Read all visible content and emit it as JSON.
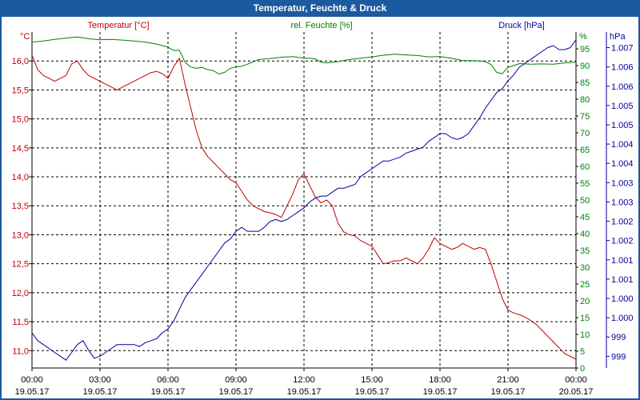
{
  "window": {
    "title": "Temperatur, Feuchte & Druck"
  },
  "colors": {
    "temperature": "#c00000",
    "humidity": "#008000",
    "pressure": "#00009a",
    "axis_text": "#000000",
    "title_bar": "#1b5a9e"
  },
  "chart_data": {
    "type": "line",
    "title": "Temperatur, Feuchte & Druck",
    "x_labels": [
      {
        "time": "00:00",
        "date": "19.05.17"
      },
      {
        "time": "03:00",
        "date": "19.05.17"
      },
      {
        "time": "06:00",
        "date": "19.05.17"
      },
      {
        "time": "09:00",
        "date": "19.05.17"
      },
      {
        "time": "12:00",
        "date": "19.05.17"
      },
      {
        "time": "15:00",
        "date": "19.05.17"
      },
      {
        "time": "18:00",
        "date": "19.05.17"
      },
      {
        "time": "21:00",
        "date": "19.05.17"
      },
      {
        "time": "00:00",
        "date": "20.05.17"
      }
    ],
    "x_range_hours": [
      0,
      24
    ],
    "axes": {
      "temperature": {
        "label": "Temperatur [°C]",
        "unit": "°C",
        "range": [
          10.7,
          16.5
        ],
        "ticks": [
          "11,0",
          "11,5",
          "12,0",
          "12,5",
          "13,0",
          "13,5",
          "14,0",
          "14,5",
          "15,0",
          "15,5",
          "16,0"
        ]
      },
      "humidity": {
        "label": "rel. Feuchte [%]",
        "unit": "%",
        "range": [
          0,
          100
        ],
        "ticks": [
          "0",
          "5",
          "10",
          "15",
          "20",
          "25",
          "30",
          "35",
          "40",
          "45",
          "50",
          "55",
          "60",
          "65",
          "70",
          "75",
          "80",
          "85",
          "90",
          "95"
        ]
      },
      "pressure": {
        "label": "Druck [hPa]",
        "unit": "hPa",
        "range": [
          998.7,
          1007.3
        ],
        "ticks": [
          "999",
          "999",
          "1.000",
          "1.000",
          "1.001",
          "1.001",
          "1.002",
          "1.002",
          "1.003",
          "1.003",
          "1.004",
          "1.004",
          "1.005",
          "1.005",
          "1.006",
          "1.006",
          "1.007"
        ]
      }
    },
    "series": [
      {
        "name": "Temperatur [°C]",
        "axis": "temperature",
        "x": [
          0,
          0.25,
          0.5,
          0.75,
          1,
          1.25,
          1.5,
          1.75,
          2,
          2.25,
          2.5,
          2.75,
          3,
          3.25,
          3.5,
          3.75,
          4,
          4.25,
          4.5,
          4.75,
          5,
          5.25,
          5.5,
          5.75,
          6,
          6.25,
          6.5,
          6.75,
          7,
          7.25,
          7.5,
          7.75,
          8,
          8.25,
          8.5,
          8.75,
          9,
          9.25,
          9.5,
          9.75,
          10,
          10.25,
          10.5,
          10.75,
          11,
          11.25,
          11.5,
          11.75,
          12,
          12.25,
          12.5,
          12.75,
          13,
          13.25,
          13.5,
          13.75,
          14,
          14.25,
          14.5,
          14.75,
          15,
          15.25,
          15.5,
          15.75,
          16,
          16.25,
          16.5,
          16.75,
          17,
          17.25,
          17.5,
          17.75,
          18,
          18.25,
          18.5,
          18.75,
          19,
          19.25,
          19.5,
          19.75,
          20,
          20.25,
          20.5,
          20.75,
          21,
          21.25,
          21.5,
          21.75,
          22,
          22.25,
          22.5,
          22.75,
          23,
          23.25,
          23.5,
          23.75,
          24
        ],
        "values": [
          16.1,
          15.85,
          15.75,
          15.7,
          15.65,
          15.7,
          15.75,
          15.95,
          16.0,
          15.85,
          15.75,
          15.7,
          15.65,
          15.6,
          15.55,
          15.5,
          15.55,
          15.6,
          15.65,
          15.7,
          15.75,
          15.8,
          15.82,
          15.78,
          15.7,
          15.9,
          16.05,
          15.6,
          15.2,
          14.8,
          14.5,
          14.35,
          14.25,
          14.15,
          14.05,
          13.95,
          13.9,
          13.75,
          13.6,
          13.5,
          13.45,
          13.4,
          13.38,
          13.35,
          13.3,
          13.5,
          13.7,
          13.95,
          14.05,
          13.85,
          13.65,
          13.55,
          13.6,
          13.5,
          13.2,
          13.05,
          13.0,
          12.98,
          12.9,
          12.85,
          12.8,
          12.65,
          12.5,
          12.52,
          12.55,
          12.55,
          12.6,
          12.55,
          12.5,
          12.6,
          12.75,
          12.95,
          12.85,
          12.8,
          12.75,
          12.78,
          12.85,
          12.8,
          12.75,
          12.78,
          12.75,
          12.5,
          12.2,
          11.9,
          11.7,
          11.65,
          11.62,
          11.58,
          11.52,
          11.45,
          11.35,
          11.25,
          11.15,
          11.05,
          10.95,
          10.9,
          10.85
        ],
        "color": "#c00000"
      },
      {
        "name": "rel. Feuchte [%]",
        "axis": "humidity",
        "x": [
          0,
          0.5,
          1,
          1.5,
          2,
          2.5,
          3,
          3.5,
          4,
          4.5,
          5,
          5.5,
          6,
          6.25,
          6.5,
          6.75,
          7,
          7.25,
          7.5,
          7.75,
          8,
          8.25,
          8.5,
          8.75,
          9,
          9.25,
          9.5,
          9.75,
          10,
          10.5,
          11,
          11.5,
          12,
          12.25,
          12.5,
          12.75,
          13,
          13.5,
          14,
          14.5,
          15,
          15.5,
          16,
          16.5,
          17,
          17.5,
          18,
          18.5,
          19,
          19.5,
          20,
          20.25,
          20.5,
          20.75,
          21,
          21.25,
          21.5,
          22,
          22.5,
          23,
          23.5,
          24
        ],
        "values": [
          97,
          97.3,
          97.8,
          98.2,
          98.5,
          98,
          97.7,
          97.8,
          97.6,
          97.3,
          97,
          96.4,
          95.5,
          94.5,
          94.6,
          91,
          89.6,
          89.2,
          89.5,
          88.8,
          88.5,
          87.5,
          88,
          89.2,
          89.6,
          89.8,
          90.4,
          91.1,
          91.8,
          92.1,
          92.5,
          92.7,
          92.2,
          92.2,
          92.0,
          91.0,
          90.8,
          91.2,
          91.8,
          92.2,
          92.6,
          93.1,
          93.4,
          93.2,
          93.0,
          92.6,
          92.7,
          92.2,
          91.5,
          91.5,
          91.2,
          90.3,
          88,
          87.6,
          89.5,
          90.0,
          90.6,
          90.4,
          90.5,
          90.4,
          90.8,
          91.0
        ],
        "color": "#008000"
      },
      {
        "name": "Druck [hPa]",
        "axis": "pressure",
        "x": [
          0,
          0.25,
          0.5,
          0.75,
          1,
          1.25,
          1.5,
          1.75,
          2,
          2.25,
          2.5,
          2.75,
          3,
          3.25,
          3.5,
          3.75,
          4,
          4.25,
          4.5,
          4.75,
          5,
          5.25,
          5.5,
          5.75,
          6,
          6.25,
          6.5,
          6.75,
          7,
          7.25,
          7.5,
          7.75,
          8,
          8.25,
          8.5,
          8.75,
          9,
          9.25,
          9.5,
          9.75,
          10,
          10.25,
          10.5,
          10.75,
          11,
          11.25,
          11.5,
          11.75,
          12,
          12.25,
          12.5,
          12.75,
          13,
          13.25,
          13.5,
          13.75,
          14,
          14.25,
          14.5,
          14.75,
          15,
          15.25,
          15.5,
          15.75,
          16,
          16.25,
          16.5,
          16.75,
          17,
          17.25,
          17.5,
          17.75,
          18,
          18.25,
          18.5,
          18.75,
          19,
          19.25,
          19.5,
          19.75,
          20,
          20.25,
          20.5,
          20.75,
          21,
          21.25,
          21.5,
          21.75,
          22,
          22.25,
          22.5,
          22.75,
          23,
          23.25,
          23.5,
          23.75,
          24
        ],
        "values": [
          999.6,
          999.4,
          999.3,
          999.2,
          999.1,
          999.0,
          998.9,
          999.1,
          999.3,
          999.4,
          999.15,
          998.95,
          999.0,
          999.1,
          999.2,
          999.3,
          999.3,
          999.3,
          999.3,
          999.25,
          999.35,
          999.4,
          999.45,
          999.6,
          999.7,
          999.9,
          1000.2,
          1000.5,
          1000.7,
          1000.9,
          1001.1,
          1001.3,
          1001.5,
          1001.7,
          1001.9,
          1002.0,
          1002.2,
          1002.3,
          1002.2,
          1002.2,
          1002.2,
          1002.3,
          1002.45,
          1002.5,
          1002.45,
          1002.5,
          1002.6,
          1002.7,
          1002.8,
          1002.95,
          1003.05,
          1003.1,
          1003.1,
          1003.2,
          1003.3,
          1003.3,
          1003.35,
          1003.4,
          1003.6,
          1003.7,
          1003.8,
          1003.9,
          1004.0,
          1004.0,
          1004.05,
          1004.1,
          1004.2,
          1004.25,
          1004.3,
          1004.35,
          1004.5,
          1004.6,
          1004.7,
          1004.7,
          1004.6,
          1004.55,
          1004.6,
          1004.7,
          1004.9,
          1005.1,
          1005.35,
          1005.55,
          1005.75,
          1005.85,
          1006.05,
          1006.2,
          1006.4,
          1006.5,
          1006.6,
          1006.7,
          1006.8,
          1006.9,
          1006.95,
          1006.85,
          1006.85,
          1006.9,
          1007.1
        ],
        "color": "#00009a"
      }
    ]
  }
}
